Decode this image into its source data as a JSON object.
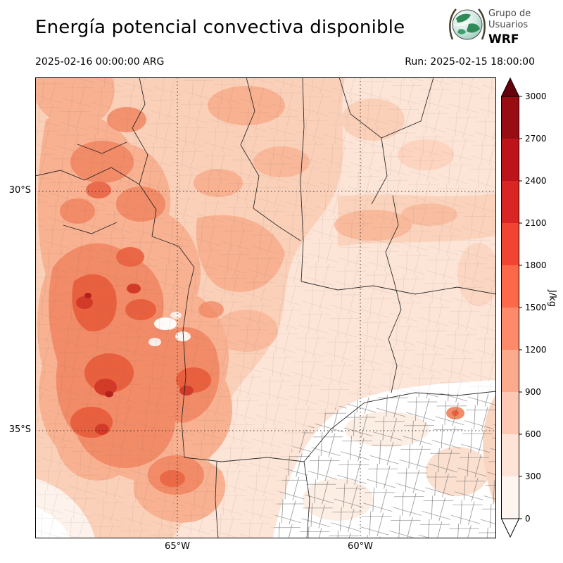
{
  "header": {
    "title": "Energía potencial convectiva disponible",
    "logo": {
      "line1": "Grupo de",
      "line2": "Usuarios",
      "line3": "WRF"
    },
    "valid_time": "2025-02-16 00:00:00 ARG",
    "run_time": "Run: 2025-02-15 18:00:00"
  },
  "map": {
    "lat_labels": [
      "30°S",
      "35°S"
    ],
    "lon_labels": [
      "65°W",
      "60°W"
    ]
  },
  "colorbar": {
    "units": "J/kg",
    "tick_labels": [
      "3000",
      "2700",
      "2400",
      "2100",
      "1800",
      "1500",
      "1200",
      "900",
      "600",
      "300",
      "0"
    ],
    "segment_colors_top_to_bottom": [
      "#980c13",
      "#bc141a",
      "#d92523",
      "#f14432",
      "#fb694a",
      "#fc8a6b",
      "#fcaa8e",
      "#fdc9b4",
      "#fee3d6",
      "#fff5f0"
    ],
    "arrow_top_color": "#67000d",
    "arrow_bottom_color": "#ffffff"
  },
  "chart_data": {
    "type": "heatmap",
    "title": "Energía potencial convectiva disponible",
    "units": "J/kg",
    "valid_time": "2025-02-16 00:00:00 ARG",
    "run_time": "Run: 2025-02-15 18:00:00",
    "colorbar_ticks": [
      0,
      300,
      600,
      900,
      1200,
      1500,
      1800,
      2100,
      2400,
      2700,
      3000
    ],
    "colorbar_range": [
      0,
      3000
    ],
    "colorbar_interval": 300,
    "x_tick_labels": [
      "65°W",
      "60°W"
    ],
    "y_tick_labels": [
      "30°S",
      "35°S"
    ],
    "legend_position": "right",
    "grid": "dotted lat/lon lines at 30S, 35S, 65W, 60W",
    "field_summary": "CAPE over central Argentina: maximum 1500-2400 J/kg over the west (Cuyo, San Luis, western Córdoba), 600-1200 J/kg across the north and center, small white minima pockets near 33.5S 64.5W, below 300 J/kg over southeastern Buenos Aires province and the bottom-left corner"
  }
}
